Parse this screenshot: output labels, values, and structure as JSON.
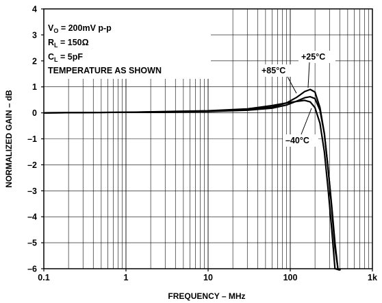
{
  "chart_data": {
    "type": "line",
    "title": "",
    "xlabel": "FREQUENCY – MHz",
    "ylabel": "NORMALIZED GAIN – dB",
    "x_scale": "log",
    "xlim": [
      0.1,
      1000
    ],
    "ylim": [
      -6,
      4
    ],
    "x_ticks": [
      0.1,
      1,
      10,
      100,
      1000
    ],
    "x_tick_labels": [
      "0.1",
      "1",
      "10",
      "100",
      "1k"
    ],
    "y_ticks": [
      4,
      3,
      2,
      1,
      0,
      -1,
      -2,
      -3,
      -4,
      -5,
      -6
    ],
    "y_tick_labels": [
      "4",
      "3",
      "2",
      "1",
      "0",
      "–1",
      "–2",
      "–3",
      "–4",
      "–5",
      "–6"
    ],
    "grid": true,
    "conditions": {
      "vo": {
        "main": "V",
        "sub": "O",
        "rest": " = 200mV p-p"
      },
      "rl": {
        "main": "R",
        "sub": "L",
        "rest": " = 150Ω"
      },
      "cl": {
        "main": "C",
        "sub": "L",
        "rest": " = 5pF"
      },
      "temp": "TEMPERATURE AS SHOWN"
    },
    "series": [
      {
        "name": "+85°C",
        "x": [
          0.1,
          1,
          10,
          30,
          60,
          90,
          120,
          150,
          175,
          200,
          230,
          260,
          290,
          320,
          350,
          400
        ],
        "y": [
          0,
          0.02,
          0.08,
          0.15,
          0.28,
          0.38,
          0.44,
          0.48,
          0.42,
          0.2,
          -0.4,
          -1.5,
          -3,
          -4.5,
          -6,
          -6.5
        ]
      },
      {
        "name": "+25°C",
        "x": [
          0.1,
          1,
          10,
          30,
          60,
          90,
          120,
          150,
          175,
          200,
          230,
          260,
          290,
          320,
          350,
          380,
          410
        ],
        "y": [
          0,
          0.02,
          0.06,
          0.12,
          0.22,
          0.38,
          0.6,
          0.82,
          0.9,
          0.8,
          0.2,
          -0.8,
          -2.2,
          -3.7,
          -5.2,
          -6,
          -6.5
        ]
      },
      {
        "name": "–40°C",
        "x": [
          0.1,
          1,
          10,
          30,
          60,
          90,
          120,
          150,
          175,
          200,
          230,
          260,
          290,
          320,
          350,
          380,
          410
        ],
        "y": [
          0,
          0.02,
          0.05,
          0.1,
          0.18,
          0.3,
          0.45,
          0.58,
          0.62,
          0.55,
          0.1,
          -0.8,
          -2.2,
          -3.6,
          -5,
          -6,
          -6.5
        ]
      }
    ],
    "annotations": [
      "+85°C",
      "+25°C",
      "–40°C"
    ]
  }
}
